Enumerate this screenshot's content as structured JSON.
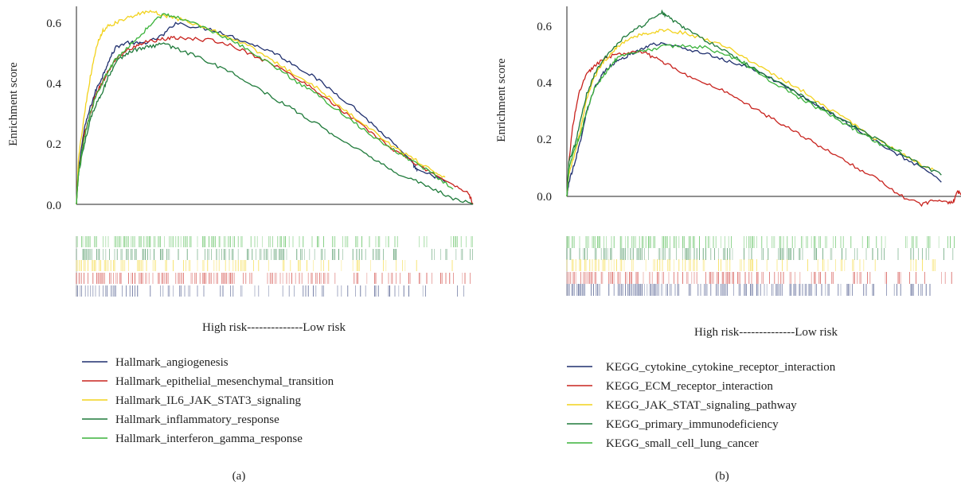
{
  "colors": {
    "navy": "#1f2f6e",
    "red": "#c8231e",
    "yellow": "#f2d21c",
    "dark_green": "#1e7a3a",
    "green": "#3ab23a"
  },
  "chart_data": [
    {
      "type": "line",
      "panel_label": "(a)",
      "ylabel": "Enrichment score",
      "xlabel": "High risk--------------Low risk",
      "yticks": [
        "0.0",
        "0.2",
        "0.4",
        "0.6"
      ],
      "ylim": [
        0,
        0.66
      ],
      "x_range": [
        0,
        1
      ],
      "grid": false,
      "legend_position": "bottom",
      "series": [
        {
          "name": "Hallmark_angiogenesis",
          "color_key": "navy",
          "x": [
            0,
            0.005,
            0.02,
            0.035,
            0.05,
            0.065,
            0.08,
            0.1,
            0.13,
            0.16,
            0.19,
            0.22,
            0.25,
            0.3,
            0.35,
            0.4,
            0.45,
            0.5,
            0.55,
            0.6,
            0.65,
            0.7,
            0.75,
            0.8,
            0.85,
            0.86,
            0.9,
            0.93
          ],
          "y": [
            0,
            0.12,
            0.25,
            0.32,
            0.38,
            0.42,
            0.47,
            0.52,
            0.535,
            0.53,
            0.54,
            0.56,
            0.6,
            0.585,
            0.575,
            0.55,
            0.525,
            0.5,
            0.46,
            0.42,
            0.37,
            0.32,
            0.26,
            0.2,
            0.13,
            0.11,
            0.095,
            0.075
          ]
        },
        {
          "name": "Hallmark_epithelial_mesenchymal_transition",
          "color_key": "red",
          "x": [
            0,
            0.005,
            0.02,
            0.035,
            0.05,
            0.065,
            0.08,
            0.1,
            0.13,
            0.16,
            0.19,
            0.22,
            0.25,
            0.3,
            0.35,
            0.4,
            0.45,
            0.5,
            0.55,
            0.6,
            0.65,
            0.7,
            0.75,
            0.8,
            0.85,
            0.9,
            0.95,
            0.99,
            1.0
          ],
          "y": [
            0,
            0.1,
            0.23,
            0.3,
            0.37,
            0.4,
            0.44,
            0.48,
            0.51,
            0.53,
            0.54,
            0.545,
            0.55,
            0.545,
            0.54,
            0.52,
            0.49,
            0.46,
            0.42,
            0.38,
            0.33,
            0.28,
            0.23,
            0.18,
            0.14,
            0.1,
            0.065,
            0.035,
            0.0
          ]
        },
        {
          "name": "Hallmark_IL6_JAK_STAT3_signaling",
          "color_key": "yellow",
          "x": [
            0,
            0.005,
            0.02,
            0.035,
            0.05,
            0.065,
            0.08,
            0.1,
            0.13,
            0.16,
            0.19,
            0.22,
            0.25,
            0.3,
            0.35,
            0.4,
            0.45,
            0.5,
            0.55,
            0.6,
            0.65,
            0.7,
            0.75,
            0.8,
            0.85,
            0.9,
            0.93
          ],
          "y": [
            0,
            0.15,
            0.3,
            0.42,
            0.52,
            0.57,
            0.59,
            0.6,
            0.615,
            0.63,
            0.635,
            0.625,
            0.615,
            0.595,
            0.57,
            0.545,
            0.51,
            0.47,
            0.43,
            0.39,
            0.34,
            0.29,
            0.24,
            0.19,
            0.15,
            0.11,
            0.09
          ]
        },
        {
          "name": "Hallmark_inflammatory_response",
          "color_key": "dark_green",
          "x": [
            0,
            0.005,
            0.02,
            0.035,
            0.05,
            0.065,
            0.08,
            0.1,
            0.13,
            0.16,
            0.19,
            0.22,
            0.25,
            0.3,
            0.35,
            0.4,
            0.45,
            0.5,
            0.55,
            0.6,
            0.65,
            0.7,
            0.75,
            0.8,
            0.85,
            0.9,
            0.95,
            1.0
          ],
          "y": [
            0,
            0.1,
            0.2,
            0.28,
            0.33,
            0.37,
            0.42,
            0.47,
            0.5,
            0.515,
            0.52,
            0.53,
            0.515,
            0.49,
            0.46,
            0.43,
            0.39,
            0.35,
            0.31,
            0.27,
            0.23,
            0.19,
            0.15,
            0.11,
            0.08,
            0.05,
            0.02,
            0.0
          ]
        },
        {
          "name": "Hallmark_interferon_gamma_response",
          "color_key": "green",
          "x": [
            0,
            0.005,
            0.02,
            0.035,
            0.05,
            0.065,
            0.08,
            0.1,
            0.13,
            0.16,
            0.19,
            0.22,
            0.25,
            0.3,
            0.35,
            0.4,
            0.45,
            0.5,
            0.55,
            0.6,
            0.65,
            0.7,
            0.75,
            0.8,
            0.85,
            0.9,
            0.95
          ],
          "y": [
            0,
            0.1,
            0.22,
            0.3,
            0.36,
            0.4,
            0.44,
            0.48,
            0.52,
            0.555,
            0.6,
            0.625,
            0.62,
            0.595,
            0.565,
            0.535,
            0.495,
            0.455,
            0.41,
            0.37,
            0.32,
            0.27,
            0.22,
            0.18,
            0.14,
            0.1,
            0.05
          ]
        }
      ]
    },
    {
      "type": "line",
      "panel_label": "(b)",
      "ylabel": "Enrichment score",
      "xlabel": "High risk--------------Low risk",
      "yticks": [
        "0.0",
        "0.2",
        "0.4",
        "0.6"
      ],
      "ylim": [
        0,
        0.66
      ],
      "x_range": [
        0,
        1
      ],
      "grid": false,
      "legend_position": "bottom",
      "series": [
        {
          "name": "KEGG_cytokine_cytokine_receptor_interaction",
          "color_key": "navy",
          "x": [
            0,
            0.005,
            0.02,
            0.035,
            0.05,
            0.07,
            0.09,
            0.11,
            0.13,
            0.16,
            0.19,
            0.22,
            0.25,
            0.3,
            0.35,
            0.4,
            0.45,
            0.5,
            0.55,
            0.6,
            0.65,
            0.7,
            0.75,
            0.8,
            0.85,
            0.9,
            0.95
          ],
          "y": [
            0,
            0.05,
            0.12,
            0.2,
            0.3,
            0.38,
            0.43,
            0.46,
            0.48,
            0.5,
            0.52,
            0.535,
            0.54,
            0.52,
            0.505,
            0.48,
            0.46,
            0.43,
            0.39,
            0.35,
            0.31,
            0.27,
            0.22,
            0.18,
            0.14,
            0.1,
            0.05
          ]
        },
        {
          "name": "KEGG_ECM_receptor_interaction",
          "color_key": "red",
          "x": [
            0,
            0.005,
            0.015,
            0.03,
            0.05,
            0.07,
            0.1,
            0.13,
            0.16,
            0.19,
            0.22,
            0.25,
            0.3,
            0.35,
            0.4,
            0.45,
            0.5,
            0.55,
            0.6,
            0.65,
            0.7,
            0.75,
            0.8,
            0.85,
            0.9,
            0.93,
            0.96,
            0.98,
            0.99,
            1.0
          ],
          "y": [
            0,
            0.12,
            0.25,
            0.36,
            0.43,
            0.46,
            0.49,
            0.5,
            0.505,
            0.51,
            0.49,
            0.47,
            0.43,
            0.4,
            0.37,
            0.33,
            0.29,
            0.25,
            0.21,
            0.17,
            0.13,
            0.09,
            0.05,
            0.0,
            -0.03,
            -0.015,
            -0.02,
            -0.02,
            0.015,
            0.01
          ]
        },
        {
          "name": "KEGG_JAK_STAT_signaling_pathway",
          "color_key": "yellow",
          "x": [
            0,
            0.005,
            0.02,
            0.035,
            0.05,
            0.07,
            0.09,
            0.11,
            0.13,
            0.16,
            0.19,
            0.22,
            0.25,
            0.3,
            0.35,
            0.4,
            0.45,
            0.5,
            0.55,
            0.6,
            0.65,
            0.7,
            0.75,
            0.8,
            0.85,
            0.9,
            0.93
          ],
          "y": [
            0,
            0.08,
            0.15,
            0.24,
            0.34,
            0.42,
            0.47,
            0.5,
            0.53,
            0.555,
            0.57,
            0.58,
            0.585,
            0.575,
            0.555,
            0.53,
            0.49,
            0.45,
            0.41,
            0.37,
            0.32,
            0.28,
            0.23,
            0.19,
            0.15,
            0.11,
            0.095
          ]
        },
        {
          "name": "KEGG_primary_immunodeficiency",
          "color_key": "dark_green",
          "x": [
            0,
            0.005,
            0.02,
            0.035,
            0.05,
            0.07,
            0.09,
            0.11,
            0.13,
            0.16,
            0.19,
            0.22,
            0.24,
            0.25,
            0.27,
            0.3,
            0.35,
            0.4,
            0.45,
            0.5,
            0.55,
            0.6,
            0.65,
            0.7,
            0.75,
            0.8,
            0.85,
            0.9,
            0.95
          ],
          "y": [
            0,
            0.12,
            0.18,
            0.27,
            0.36,
            0.43,
            0.48,
            0.51,
            0.54,
            0.58,
            0.6,
            0.63,
            0.65,
            0.64,
            0.62,
            0.59,
            0.55,
            0.515,
            0.47,
            0.43,
            0.39,
            0.35,
            0.31,
            0.27,
            0.23,
            0.19,
            0.15,
            0.11,
            0.075
          ]
        },
        {
          "name": "KEGG_small_cell_lung_cancer",
          "color_key": "green",
          "x": [
            0,
            0.005,
            0.02,
            0.035,
            0.05,
            0.07,
            0.09,
            0.11,
            0.13,
            0.16,
            0.19,
            0.22,
            0.25,
            0.3,
            0.35,
            0.4,
            0.45,
            0.5,
            0.55,
            0.6,
            0.65,
            0.7,
            0.75,
            0.8,
            0.85
          ],
          "y": [
            0,
            0.1,
            0.17,
            0.22,
            0.3,
            0.38,
            0.42,
            0.46,
            0.49,
            0.5,
            0.51,
            0.52,
            0.53,
            0.53,
            0.525,
            0.5,
            0.47,
            0.42,
            0.38,
            0.34,
            0.3,
            0.26,
            0.22,
            0.18,
            0.16
          ]
        }
      ]
    }
  ],
  "barcode": [
    {
      "rows": [
        {
          "color_key": "green",
          "density": 0.65,
          "seed": 11
        },
        {
          "color_key": "dark_green",
          "density": 0.45,
          "seed": 23
        },
        {
          "color_key": "yellow",
          "density": 0.35,
          "seed": 37
        },
        {
          "color_key": "red",
          "density": 0.55,
          "seed": 41
        },
        {
          "color_key": "navy",
          "density": 0.25,
          "seed": 53
        }
      ]
    },
    {
      "rows": [
        {
          "color_key": "green",
          "density": 0.55,
          "seed": 61
        },
        {
          "color_key": "dark_green",
          "density": 0.45,
          "seed": 73
        },
        {
          "color_key": "yellow",
          "density": 0.4,
          "seed": 89
        },
        {
          "color_key": "red",
          "density": 0.5,
          "seed": 97
        },
        {
          "color_key": "navy",
          "density": 0.7,
          "seed": 103
        }
      ]
    }
  ]
}
